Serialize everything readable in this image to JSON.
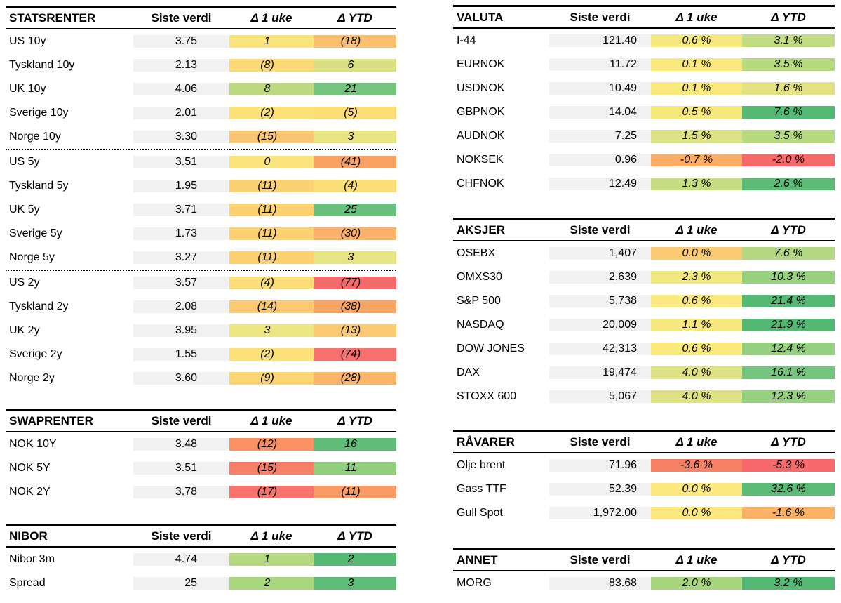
{
  "page_bg": "#FFFFFF",
  "value_col_bg": "#F1F1F1",
  "heatmap_scale": {
    "negative": "#F8696B",
    "neutral": "#FFEB84",
    "positive": "#63BE7B"
  },
  "columns": {
    "value": "Siste verdi",
    "week": "Δ 1 uke",
    "ytd": "Δ YTD"
  },
  "tables": [
    {
      "id": "statsrenter",
      "title": "STATSRENTER",
      "sep_before": [
        5,
        10
      ],
      "rows": [
        {
          "name": "US 10y",
          "value": "3.75",
          "week": "1",
          "week_bg": "#FAE57C",
          "ytd": "(18)",
          "ytd_bg": "#FBBE6E"
        },
        {
          "name": "Tyskland 10y",
          "value": "2.13",
          "week": "(8)",
          "week_bg": "#FBD873",
          "ytd": "6",
          "ytd_bg": "#D9E081"
        },
        {
          "name": "UK 10y",
          "value": "4.06",
          "week": "8",
          "week_bg": "#BCD881",
          "ytd": "21",
          "ytd_bg": "#74C480"
        },
        {
          "name": "Sverige 10y",
          "value": "2.01",
          "week": "(2)",
          "week_bg": "#FBDF77",
          "ytd": "(5)",
          "ytd_bg": "#FBDC76"
        },
        {
          "name": "Norge 10y",
          "value": "3.30",
          "week": "(15)",
          "week_bg": "#FAC671",
          "ytd": "3",
          "ytd_bg": "#E6E483"
        },
        {
          "name": "US 5y",
          "value": "3.51",
          "week": "0",
          "week_bg": "#FBE47B",
          "ytd": "(41)",
          "ytd_bg": "#F9A263"
        },
        {
          "name": "Tyskland 5y",
          "value": "1.95",
          "week": "(11)",
          "week_bg": "#FBD172",
          "ytd": "(4)",
          "ytd_bg": "#FBDD77"
        },
        {
          "name": "UK 5y",
          "value": "3.71",
          "week": "(11)",
          "week_bg": "#FBD172",
          "ytd": "25",
          "ytd_bg": "#68C07C"
        },
        {
          "name": "Sverige 5y",
          "value": "1.73",
          "week": "(11)",
          "week_bg": "#FBD172",
          "ytd": "(30)",
          "ytd_bg": "#FAB169"
        },
        {
          "name": "Norge 5y",
          "value": "3.27",
          "week": "(11)",
          "week_bg": "#FBD172",
          "ytd": "3",
          "ytd_bg": "#E6E483"
        },
        {
          "name": "US 2y",
          "value": "3.57",
          "week": "(4)",
          "week_bg": "#FBDD77",
          "ytd": "(77)",
          "ytd_bg": "#F8696B"
        },
        {
          "name": "Tyskland 2y",
          "value": "2.08",
          "week": "(14)",
          "week_bg": "#FAC971",
          "ytd": "(38)",
          "ytd_bg": "#F9A665"
        },
        {
          "name": "UK 2y",
          "value": "3.95",
          "week": "3",
          "week_bg": "#EEE682",
          "ytd": "(13)",
          "ytd_bg": "#FBCB73"
        },
        {
          "name": "Sverige 2y",
          "value": "1.55",
          "week": "(2)",
          "week_bg": "#FBDF77",
          "ytd": "(74)",
          "ytd_bg": "#F8706E"
        },
        {
          "name": "Norge 2y",
          "value": "3.60",
          "week": "(9)",
          "week_bg": "#FBD573",
          "ytd": "(28)",
          "ytd_bg": "#FAB46A"
        }
      ]
    },
    {
      "id": "swaprenter",
      "title": "SWAPRENTER",
      "sep_before": [],
      "rows": [
        {
          "name": "NOK 10Y",
          "value": "3.48",
          "week": "(12)",
          "week_bg": "#FA9160",
          "ytd": "16",
          "ytd_bg": "#5FBD78"
        },
        {
          "name": "NOK 5Y",
          "value": "3.51",
          "week": "(15)",
          "week_bg": "#F97F69",
          "ytd": "11",
          "ytd_bg": "#90CE7E"
        },
        {
          "name": "NOK 2Y",
          "value": "3.78",
          "week": "(17)",
          "week_bg": "#F8736C",
          "ytd": "(11)",
          "ytd_bg": "#FA9A64"
        }
      ]
    },
    {
      "id": "nibor",
      "title": "NIBOR",
      "sep_before": [],
      "rows": [
        {
          "name": "Nibor 3m",
          "value": "4.74",
          "week": "1",
          "week_bg": "#B5D980",
          "ytd": "2",
          "ytd_bg": "#55B975"
        },
        {
          "name": "Spread",
          "value": "25",
          "week": "2",
          "week_bg": "#A8D77E",
          "ytd": "3",
          "ytd_bg": "#5FBD78"
        }
      ]
    },
    {
      "id": "valuta",
      "title": "VALUTA",
      "sep_before": [],
      "rows": [
        {
          "name": "I-44",
          "value": "121.40",
          "week": "0.6 %",
          "week_bg": "#F6E77E",
          "ytd": "3.1 %",
          "ytd_bg": "#C2DC83"
        },
        {
          "name": "EURNOK",
          "value": "11.72",
          "week": "0.1 %",
          "week_bg": "#FAE97D",
          "ytd": "3.5 %",
          "ytd_bg": "#B7DA81"
        },
        {
          "name": "USDNOK",
          "value": "10.49",
          "week": "0.1 %",
          "week_bg": "#FAE97D",
          "ytd": "1.6 %",
          "ytd_bg": "#E3E385"
        },
        {
          "name": "GBPNOK",
          "value": "14.04",
          "week": "0.5 %",
          "week_bg": "#F7E87E",
          "ytd": "7.6 %",
          "ytd_bg": "#53B975"
        },
        {
          "name": "AUDNOK",
          "value": "7.25",
          "week": "1.5 %",
          "week_bg": "#DCE184",
          "ytd": "3.5 %",
          "ytd_bg": "#B7DA81"
        },
        {
          "name": "NOKSEK",
          "value": "0.96",
          "week": "-0.7 %",
          "week_bg": "#FBAD66",
          "ytd": "-2.0 %",
          "ytd_bg": "#F8696B"
        },
        {
          "name": "CHFNOK",
          "value": "12.49",
          "week": "1.3 %",
          "week_bg": "#C6DD83",
          "ytd": "2.6 %",
          "ytd_bg": "#5CBC77"
        }
      ]
    },
    {
      "id": "aksjer",
      "title": "AKSJER",
      "sep_before": [],
      "rows": [
        {
          "name": "OSEBX",
          "value": "1,407",
          "week": "0.0 %",
          "week_bg": "#FBC96F",
          "ytd": "7.6 %",
          "ytd_bg": "#B2D881"
        },
        {
          "name": "OMXS30",
          "value": "2,639",
          "week": "2.3 %",
          "week_bg": "#F1E77F",
          "ytd": "10.3 %",
          "ytd_bg": "#97D07F"
        },
        {
          "name": "S&P 500",
          "value": "5,738",
          "week": "0.6 %",
          "week_bg": "#F9E87D",
          "ytd": "21.4 %",
          "ytd_bg": "#55B975"
        },
        {
          "name": "NASDAQ",
          "value": "20,009",
          "week": "1.1 %",
          "week_bg": "#F6E77F",
          "ytd": "21.9 %",
          "ytd_bg": "#53B874"
        },
        {
          "name": "DOW JONES",
          "value": "42,313",
          "week": "0.6 %",
          "week_bg": "#F9E87D",
          "ytd": "12.4 %",
          "ytd_bg": "#95D07F"
        },
        {
          "name": "DAX",
          "value": "19,474",
          "week": "4.0 %",
          "week_bg": "#DEE284",
          "ytd": "16.1 %",
          "ytd_bg": "#76C57F"
        },
        {
          "name": "STOXX 600",
          "value": "5,067",
          "week": "4.0 %",
          "week_bg": "#DEE284",
          "ytd": "12.3 %",
          "ytd_bg": "#96D080"
        }
      ]
    },
    {
      "id": "raavarer",
      "title": "RÅVARER",
      "sep_before": [],
      "rows": [
        {
          "name": "Olje brent",
          "value": "71.96",
          "week": "-3.6 %",
          "week_bg": "#F98165",
          "ytd": "-5.3 %",
          "ytd_bg": "#F8696B"
        },
        {
          "name": "Gass TTF",
          "value": "52.39",
          "week": "0.0 %",
          "week_bg": "#FBE77D",
          "ytd": "32.6 %",
          "ytd_bg": "#5ABB76"
        },
        {
          "name": "Gull Spot",
          "value": "1,972.00",
          "week": "0.0 %",
          "week_bg": "#FBE77D",
          "ytd": "-1.6 %",
          "ytd_bg": "#FBB168"
        }
      ]
    },
    {
      "id": "annet",
      "title": "ANNET",
      "sep_before": [],
      "rows": [
        {
          "name": "MORG",
          "value": "83.68",
          "week": "2.0 %",
          "week_bg": "#A7D67E",
          "ytd": "3.2 %",
          "ytd_bg": "#55B975"
        }
      ]
    }
  ]
}
